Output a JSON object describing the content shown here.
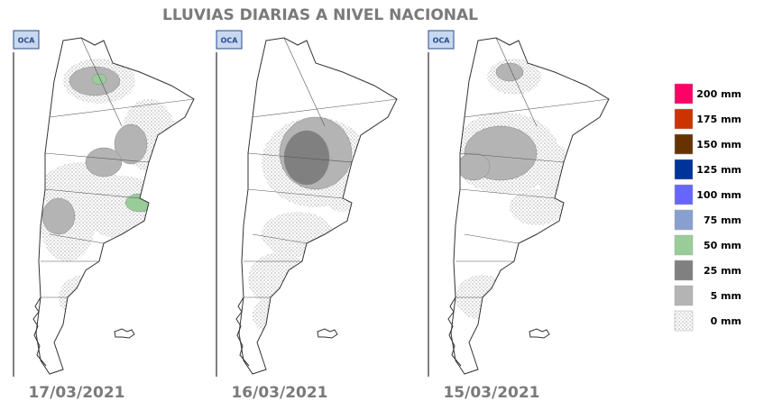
{
  "title": "LLUVIAS DIARIAS A NIVEL NACIONAL",
  "panels": [
    {
      "logo": "OCA",
      "date": "17/03/2021"
    },
    {
      "logo": "OCA",
      "date": "16/03/2021"
    },
    {
      "logo": "OCA",
      "date": "15/03/2021"
    }
  ],
  "legend": [
    {
      "label": "200 mm",
      "color": "#ff0066"
    },
    {
      "label": "175 mm",
      "color": "#cc3300"
    },
    {
      "label": "150 mm",
      "color": "#663300"
    },
    {
      "label": "125 mm",
      "color": "#003399"
    },
    {
      "label": "100 mm",
      "color": "#6666ff"
    },
    {
      "label": "75 mm",
      "color": "#88a0d0"
    },
    {
      "label": "50 mm",
      "color": "#99cc99"
    },
    {
      "label": "25 mm",
      "color": "#808080"
    },
    {
      "label": "5 mm",
      "color": "#b4b4b4"
    },
    {
      "label": "0 mm"
    }
  ]
}
